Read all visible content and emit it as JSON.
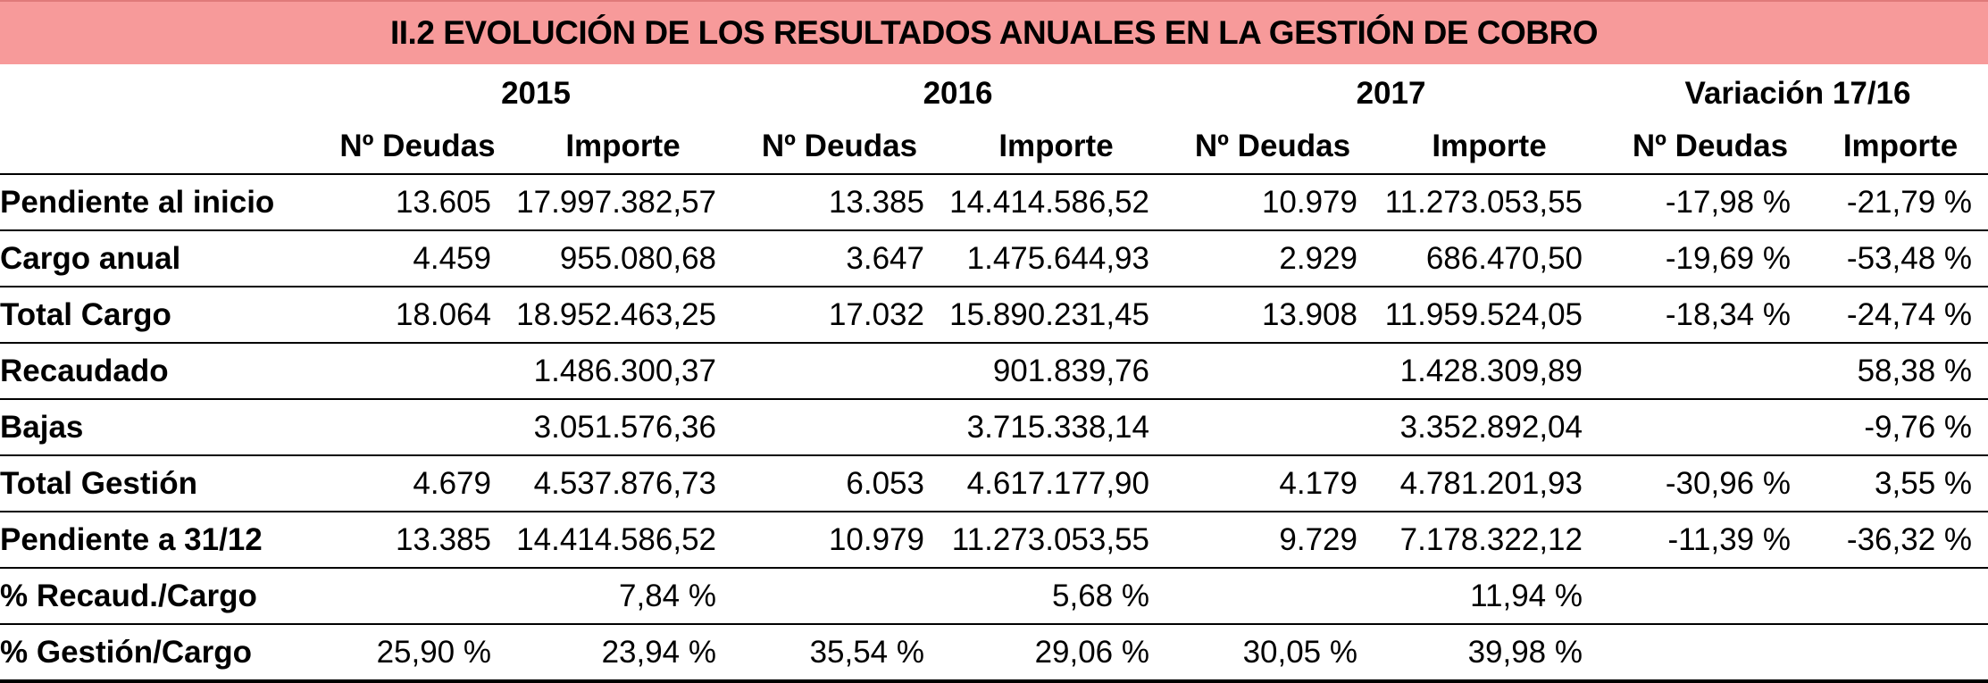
{
  "title": "II.2 EVOLUCIÓN DE LOS RESULTADOS ANUALES EN LA GESTIÓN DE COBRO",
  "years": [
    "2015",
    "2016",
    "2017",
    "Variación 17/16"
  ],
  "sub_headers": [
    "Nº Deudas",
    "Importe",
    "Nº Deudas",
    "Importe",
    "Nº Deudas",
    "Importe",
    "Nº Deudas",
    "Importe"
  ],
  "rows": [
    {
      "label": "Pendiente al inicio",
      "cells": [
        "13.605",
        "17.997.382,57",
        "13.385",
        "14.414.586,52",
        "10.979",
        "11.273.053,55",
        "-17,98 %",
        "-21,79 %"
      ]
    },
    {
      "label": "Cargo anual",
      "cells": [
        "4.459",
        "955.080,68",
        "3.647",
        "1.475.644,93",
        "2.929",
        "686.470,50",
        "-19,69 %",
        "-53,48 %"
      ]
    },
    {
      "label": "Total Cargo",
      "cells": [
        "18.064",
        "18.952.463,25",
        "17.032",
        "15.890.231,45",
        "13.908",
        "11.959.524,05",
        "-18,34 %",
        "-24,74 %"
      ]
    },
    {
      "label": "Recaudado",
      "cells": [
        "",
        "1.486.300,37",
        "",
        "901.839,76",
        "",
        "1.428.309,89",
        "",
        "58,38 %"
      ]
    },
    {
      "label": "Bajas",
      "cells": [
        "",
        "3.051.576,36",
        "",
        "3.715.338,14",
        "",
        "3.352.892,04",
        "",
        "-9,76 %"
      ]
    },
    {
      "label": "Total Gestión",
      "cells": [
        "4.679",
        "4.537.876,73",
        "6.053",
        "4.617.177,90",
        "4.179",
        "4.781.201,93",
        "-30,96 %",
        "3,55 %"
      ]
    },
    {
      "label": "Pendiente a 31/12",
      "cells": [
        "13.385",
        "14.414.586,52",
        "10.979",
        "11.273.053,55",
        "9.729",
        "7.178.322,12",
        "-11,39 %",
        "-36,32 %"
      ]
    },
    {
      "label": "% Recaud./Cargo",
      "cells": [
        "",
        "7,84 %",
        "",
        "5,68 %",
        "",
        "11,94 %",
        "",
        ""
      ]
    },
    {
      "label": "% Gestión/Cargo",
      "cells": [
        "25,90 %",
        "23,94 %",
        "35,54 %",
        "29,06 %",
        "30,05 %",
        "39,98 %",
        "",
        ""
      ]
    }
  ],
  "colors": {
    "title_background": "#f79a9a",
    "border": "#000000"
  }
}
